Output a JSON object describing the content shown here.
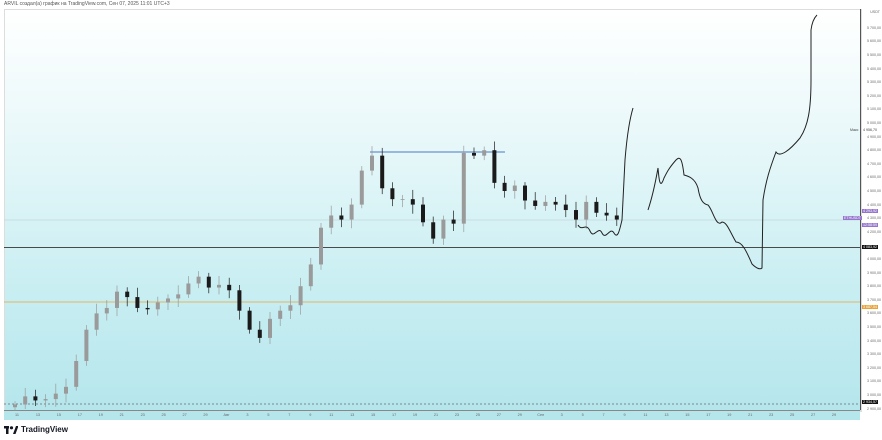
{
  "header": {
    "title": "ARVIL создал(а) график на TradingView.com, Сен 07, 2025 11:01 UTC+3"
  },
  "colors": {
    "up": "#9a9a9a",
    "down": "#1a1a1a",
    "support": "#333333",
    "orange_level": "#e8a33a",
    "blue_line": "#4a78c0",
    "symbol_tag": "#9575cd"
  },
  "price_axis": {
    "currency": "USDT",
    "ticks": [
      "5 700,00",
      "5 600,00",
      "5 500,00",
      "5 400,00",
      "5 300,00",
      "5 200,00",
      "5 100,00",
      "5 000,00",
      "4 900,00",
      "4 800,00",
      "4 700,00",
      "4 600,00",
      "4 500,00",
      "4 400,00",
      "4 300,00",
      "4 200,00",
      "4 000,00",
      "3 900,00",
      "3 800,00",
      "3 700,00",
      "3 600,00",
      "3 500,00",
      "3 400,00",
      "3 300,00",
      "3 200,00",
      "3 100,00",
      "3 000,00",
      "2 900,00"
    ],
    "max_label": "Макс",
    "max_value": "4 956,70",
    "symbol_tag": "ETHUSDT",
    "last_price": "4 293,92",
    "countdown": "12:58:59",
    "support_value": "4 083,92",
    "orange_value": "3 687,54",
    "low_value": "2 934,57"
  },
  "time_axis": {
    "labels": [
      "11",
      "13",
      "15",
      "17",
      "19",
      "21",
      "23",
      "25",
      "27",
      "29",
      "Авг",
      "3",
      "5",
      "7",
      "9",
      "11",
      "13",
      "15",
      "17",
      "19",
      "21",
      "23",
      "25",
      "27",
      "29",
      "Сен",
      "3",
      "5",
      "7",
      "9",
      "11",
      "13",
      "15",
      "17",
      "19",
      "21",
      "23",
      "25",
      "27",
      "29"
    ]
  },
  "chart_data": {
    "type": "candlestick",
    "symbol": "ETHUSDT",
    "x_range": [
      "Jul 10",
      "Sep 29"
    ],
    "ylim": [
      2900,
      5750
    ],
    "start_date": "Jul 10",
    "closes": [
      2930,
      2990,
      2960,
      2970,
      3010,
      3060,
      3250,
      3480,
      3600,
      3640,
      3760,
      3720,
      3640,
      3630,
      3680,
      3710,
      3740,
      3820,
      3870,
      3790,
      3810,
      3770,
      3620,
      3480,
      3420,
      3560,
      3620,
      3660,
      3800,
      3960,
      4230,
      4320,
      4290,
      4400,
      4650,
      4760,
      4520,
      4440,
      4440,
      4400,
      4270,
      4150,
      4290,
      4260,
      4780,
      4760,
      4800,
      4560,
      4500,
      4540,
      4430,
      4390,
      4420,
      4400,
      4360,
      4290,
      4420,
      4340,
      4320,
      4290
    ],
    "horizontal_levels": [
      4083.92,
      3687.54,
      2934.57
    ],
    "resistance_line": 4760
  },
  "footer": {
    "brand": "TradingView"
  }
}
